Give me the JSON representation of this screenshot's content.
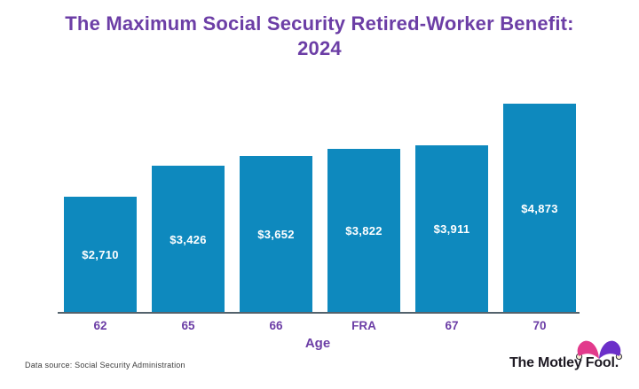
{
  "title": {
    "line1": "The Maximum Social Security Retired-Worker Benefit:",
    "line2": "2024"
  },
  "chart_data": {
    "type": "bar",
    "title": "The Maximum Social Security Retired-Worker Benefit: 2024",
    "categories": [
      "62",
      "65",
      "66",
      "FRA",
      "67",
      "70"
    ],
    "values": [
      2710,
      3426,
      3652,
      3822,
      3911,
      4873
    ],
    "value_labels": [
      "$2,710",
      "$3,426",
      "$3,652",
      "$3,822",
      "$3,911",
      "$4,873"
    ],
    "xlabel": "Age",
    "ylabel": "",
    "ylim": [
      0,
      4873
    ],
    "grid": false,
    "legend": false,
    "bar_color": "#0E89BE",
    "value_label_color": "#FFFFFF",
    "tick_label_color": "#6C3EA6",
    "axis_line_color": "#53626C"
  },
  "colors": {
    "title": "#6C3EA6",
    "background": "#FFFFFF",
    "brand_hat_left": "#E23A8C",
    "brand_hat_right": "#6B2FC9",
    "brand_bell": "#F6EED2",
    "brand_text": "#1F1B24"
  },
  "footer": {
    "source": "Data source: Social Security Administration",
    "brand": "The Motley Fool."
  }
}
